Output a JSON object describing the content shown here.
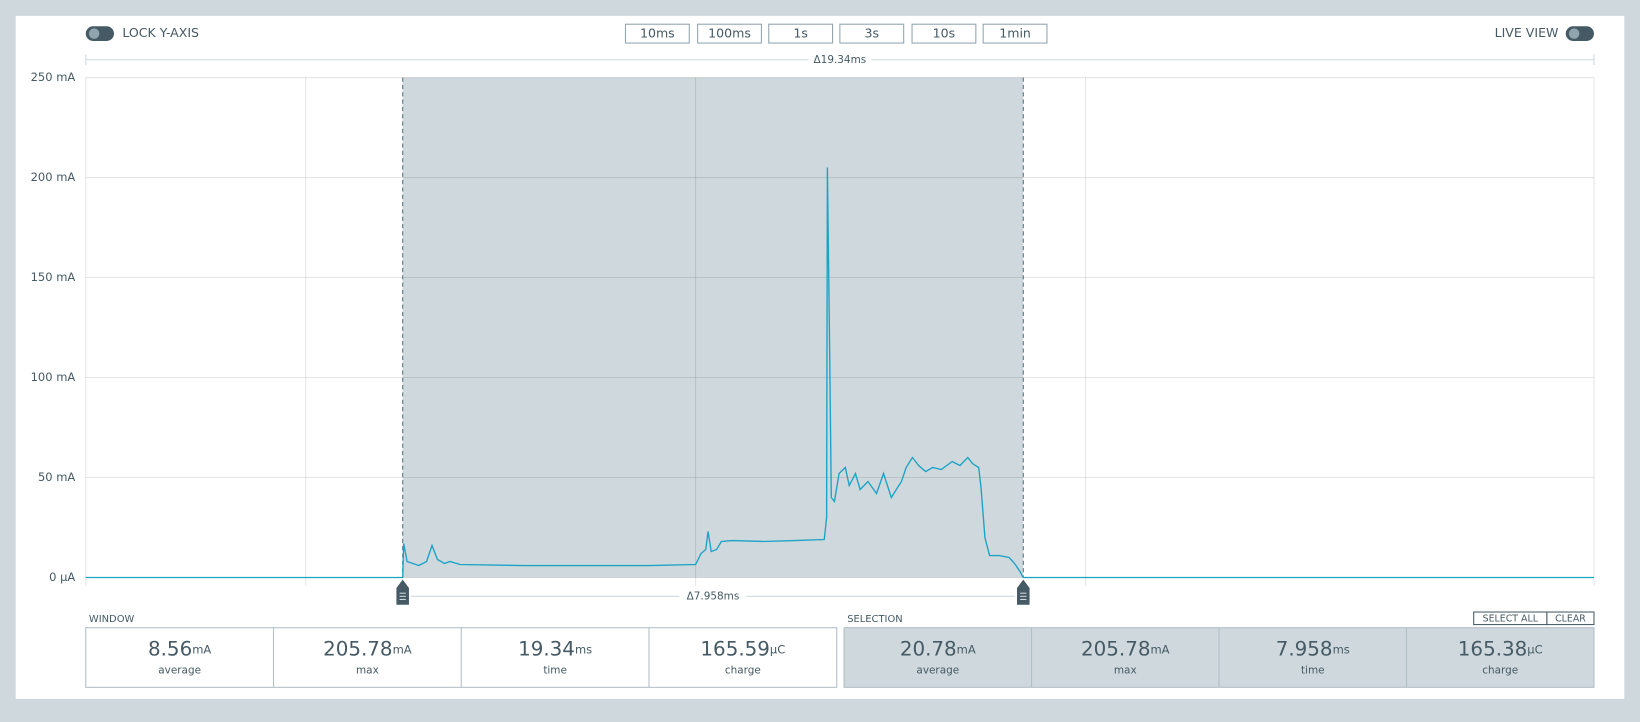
{
  "toolbar": {
    "lock_label": "LOCK Y-AXIS",
    "live_label": "LIVE VIEW",
    "time_buttons": [
      "10ms",
      "100ms",
      "1s",
      "3s",
      "10s",
      "1min"
    ]
  },
  "chart_data": {
    "type": "line",
    "window_delta": "Δ19.34ms",
    "selection_delta": "Δ7.958ms",
    "xlim": [
      0,
      19.34
    ],
    "xticks": [
      2.82,
      7.82,
      12.82
    ],
    "ylim": [
      0,
      250
    ],
    "yticks": [
      {
        "value": 0,
        "label": "0 µA"
      },
      {
        "value": 50,
        "label": "50 mA"
      },
      {
        "value": 100,
        "label": "100 mA"
      },
      {
        "value": 150,
        "label": "150 mA"
      },
      {
        "value": 200,
        "label": "200 mA"
      },
      {
        "value": 250,
        "label": "250 mA"
      }
    ],
    "grid": true,
    "selection": [
      4.064,
      12.022
    ],
    "selection_color": "#cfd8dc",
    "series": [
      {
        "color": "#1ba3c6",
        "x": [
          0,
          4.064,
          4.077,
          4.12,
          4.27,
          4.37,
          4.44,
          4.51,
          4.6,
          4.67,
          4.8,
          5.61,
          6.41,
          7.22,
          7.82,
          7.89,
          7.95,
          7.98,
          8.02,
          8.09,
          8.15,
          8.29,
          8.69,
          9.09,
          9.47,
          9.5,
          9.51,
          9.54,
          9.56,
          9.6,
          9.66,
          9.74,
          9.79,
          9.87,
          9.93,
          10.03,
          10.14,
          10.23,
          10.33,
          10.41,
          10.46,
          10.52,
          10.6,
          10.68,
          10.77,
          10.86,
          10.97,
          11.11,
          11.21,
          11.31,
          11.37,
          11.45,
          11.48,
          11.53,
          11.59,
          11.71,
          11.84,
          11.91,
          11.98,
          12.02,
          19.34
        ],
        "values": [
          0,
          0,
          17,
          8,
          6,
          8,
          16,
          9,
          7,
          8,
          6.5,
          6,
          6,
          6,
          6.5,
          12,
          14,
          23,
          13,
          14,
          18,
          18.5,
          18,
          18.5,
          19,
          30,
          205,
          110,
          40,
          38,
          52,
          55,
          46,
          52,
          44,
          48,
          42,
          52,
          40,
          45,
          48,
          55,
          60,
          56,
          53,
          55,
          54,
          58,
          56,
          60,
          57,
          55,
          45,
          20,
          11,
          11,
          10,
          7,
          3,
          0,
          0
        ]
      }
    ]
  },
  "stats": {
    "window": {
      "label": "WINDOW",
      "items": [
        {
          "value": "8.56",
          "unit": "mA",
          "label": "average"
        },
        {
          "value": "205.78",
          "unit": "mA",
          "label": "max"
        },
        {
          "value": "19.34",
          "unit": "ms",
          "label": "time"
        },
        {
          "value": "165.59",
          "unit": "µC",
          "label": "charge"
        }
      ]
    },
    "selection": {
      "label": "SELECTION",
      "items": [
        {
          "value": "20.78",
          "unit": "mA",
          "label": "average"
        },
        {
          "value": "205.78",
          "unit": "mA",
          "label": "max"
        },
        {
          "value": "7.958",
          "unit": "ms",
          "label": "time"
        },
        {
          "value": "165.38",
          "unit": "µC",
          "label": "charge"
        }
      ],
      "buttons": [
        "SELECT ALL",
        "CLEAR"
      ]
    }
  }
}
